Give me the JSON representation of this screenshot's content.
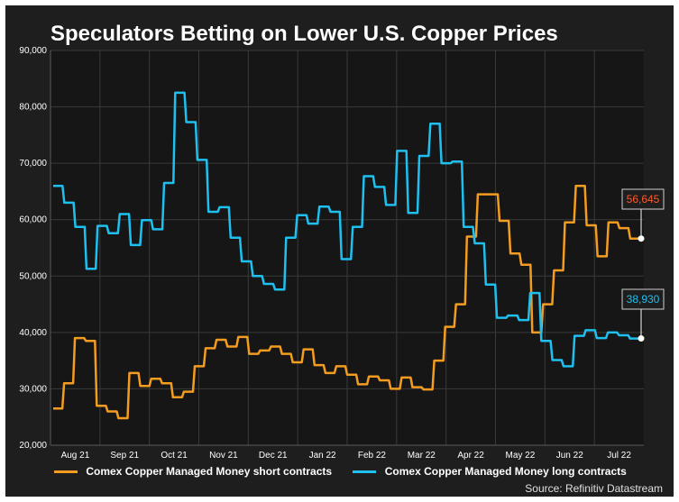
{
  "title": "Speculators Betting on Lower U.S. Copper Prices",
  "source": "Source: Refinitiv Datastream",
  "colors": {
    "background": "#1e1e1e",
    "short": "#f39c1f",
    "long": "#1ec0f0",
    "short_label": "#ff5a2a",
    "long_label": "#1ec0f0"
  },
  "chart_data": {
    "type": "line",
    "y_ticks": [
      "90,000",
      "80,000",
      "70,000",
      "60,000",
      "50,000",
      "40,000",
      "30,000",
      "20,000"
    ],
    "y_tick_values": [
      90000,
      80000,
      70000,
      60000,
      50000,
      40000,
      30000,
      20000
    ],
    "ylim": [
      20000,
      90000
    ],
    "x_ticks": [
      "Aug 21",
      "Sep 21",
      "Oct 21",
      "Nov 21",
      "Dec 21",
      "Jan 22",
      "Feb 22",
      "Mar 22",
      "Apr 22",
      "May 22",
      "Jun 22",
      "Jul 22"
    ],
    "grid": true,
    "legend_position": "bottom",
    "series": [
      {
        "name": "Comex Copper Managed Money short contracts",
        "values": [
          26500,
          31000,
          39000,
          38500,
          27000,
          26000,
          24800,
          32800,
          30500,
          31800,
          31000,
          28500,
          29500,
          34000,
          37200,
          38700,
          37500,
          39200,
          36200,
          36800,
          37500,
          36200,
          34700,
          37000,
          34200,
          32800,
          34000,
          32500,
          30800,
          32200,
          31500,
          30000,
          32000,
          30300,
          29900,
          35000,
          41000,
          45000,
          57000,
          64500,
          64500,
          59800,
          54000,
          52000,
          40000,
          45000,
          51000,
          59500,
          66000,
          59000,
          53500,
          59500,
          58500,
          56645
        ],
        "last_label": "56,645"
      },
      {
        "name": "Comex Copper Managed Money long contracts",
        "values": [
          66000,
          63000,
          58700,
          51300,
          58900,
          57600,
          61000,
          55500,
          59900,
          58300,
          66500,
          82500,
          77300,
          70600,
          61400,
          62200,
          56800,
          52600,
          50000,
          48600,
          47600,
          56800,
          60800,
          59300,
          62300,
          61400,
          53000,
          58700,
          67700,
          65800,
          62600,
          72200,
          61200,
          71300,
          77000,
          70000,
          70300,
          58700,
          55800,
          48500,
          42600,
          43000,
          42200,
          47000,
          38500,
          35100,
          34000,
          39400,
          40400,
          39000,
          40000,
          39500,
          38930
        ],
        "last_label": "38,930"
      }
    ]
  }
}
